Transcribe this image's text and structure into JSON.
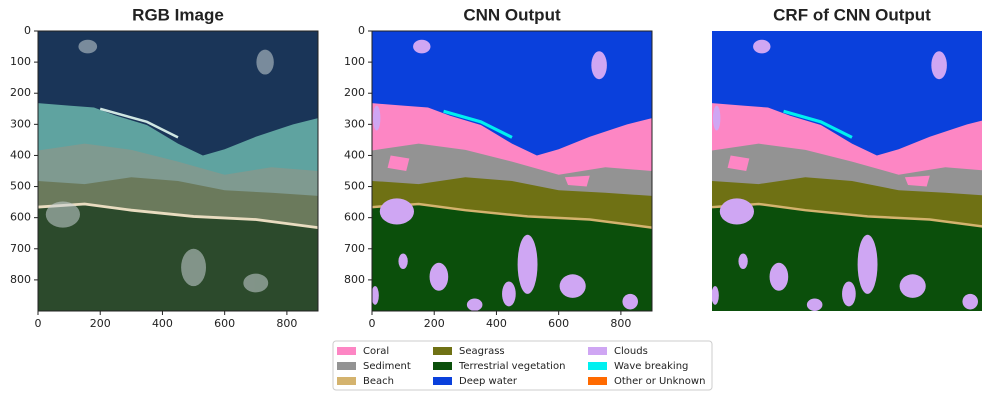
{
  "chart_data": [
    {
      "type": "image",
      "title": "RGB Image",
      "xlim": [
        0,
        900
      ],
      "ylim": [
        900,
        0
      ],
      "xticks": [
        0,
        200,
        400,
        600,
        800
      ],
      "yticks": [
        0,
        100,
        200,
        300,
        400,
        500,
        600,
        700,
        800
      ]
    },
    {
      "type": "image",
      "title": "CNN Output",
      "xlim": [
        0,
        900
      ],
      "ylim": [
        900,
        0
      ],
      "xticks": [
        0,
        200,
        400,
        600,
        800
      ],
      "yticks": [
        0,
        100,
        200,
        300,
        400,
        500,
        600,
        700,
        800
      ]
    },
    {
      "type": "image",
      "title": "CRF of CNN Output"
    }
  ],
  "legend": [
    {
      "name": "Coral",
      "color": "#fd86c4"
    },
    {
      "name": "Sediment",
      "color": "#939393"
    },
    {
      "name": "Beach",
      "color": "#d4b36e"
    },
    {
      "name": "Seagrass",
      "color": "#6f7114"
    },
    {
      "name": "Terrestrial vegetation",
      "color": "#0b4f0b"
    },
    {
      "name": "Deep water",
      "color": "#0a40dc"
    },
    {
      "name": "Clouds",
      "color": "#cfa6f3"
    },
    {
      "name": "Wave breaking",
      "color": "#00f0f0"
    },
    {
      "name": "Other or Unknown",
      "color": "#ff6a00"
    }
  ]
}
